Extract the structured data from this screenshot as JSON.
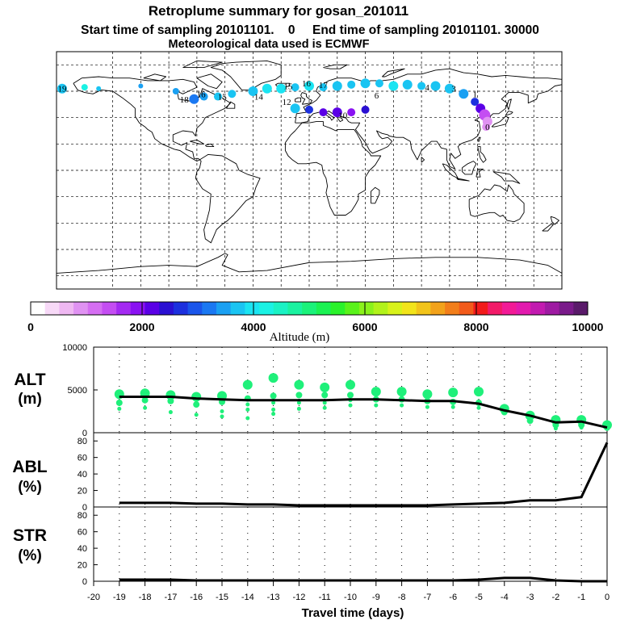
{
  "header": {
    "title": "Retroplume summary for gosan_201011",
    "sampling": "Start time of sampling 20101101.    0     End time of sampling 20101101. 30000",
    "met": "Meteorological data used is ECMWF"
  },
  "colorbar": {
    "label": "Altitude (m)",
    "ticks": [
      "0",
      "2000",
      "4000",
      "6000",
      "8000",
      "10000"
    ],
    "colors": [
      "#ffffff",
      "#f7d9f7",
      "#efb8f2",
      "#e092f2",
      "#d56ef2",
      "#c44df2",
      "#a42af2",
      "#8a12f2",
      "#5a00e6",
      "#2a10d2",
      "#1c30de",
      "#1a55ea",
      "#1a78f2",
      "#1aa0f2",
      "#1ac4f2",
      "#1ae4f2",
      "#1af2e4",
      "#1af2c4",
      "#1af2a0",
      "#1af27a",
      "#1af252",
      "#2af22a",
      "#5af21a",
      "#8af21a",
      "#b2f21a",
      "#d8f21a",
      "#f2e41a",
      "#f2c41a",
      "#f2a21a",
      "#f27e1a",
      "#f25a1a",
      "#f21a1a",
      "#f21a68",
      "#f21a96",
      "#e21aae",
      "#c21ab0",
      "#9e1aa2",
      "#7a1a8a",
      "#5a1a6a"
    ]
  },
  "map_labels": [
    {
      "t": "19",
      "lon": -176,
      "lat": 62
    },
    {
      "t": "16",
      "lon": -77,
      "lat": 58
    },
    {
      "t": "18",
      "lon": -89,
      "lat": 54
    },
    {
      "t": "15",
      "lon": -62,
      "lat": 56
    },
    {
      "t": "14",
      "lon": -36,
      "lat": 56
    },
    {
      "t": "15",
      "lon": -15,
      "lat": 64
    },
    {
      "t": "16",
      "lon": -2,
      "lat": 66
    },
    {
      "t": "17",
      "lon": 10,
      "lat": 65
    },
    {
      "t": "12",
      "lon": -16,
      "lat": 52
    },
    {
      "t": "10",
      "lon": 24,
      "lat": 42
    },
    {
      "t": "6",
      "lon": 48,
      "lat": 57
    },
    {
      "t": "4",
      "lon": 84,
      "lat": 63
    },
    {
      "t": "3",
      "lon": 103,
      "lat": 62
    },
    {
      "t": "1",
      "lon": 118,
      "lat": 58
    },
    {
      "t": "0",
      "lon": 127,
      "lat": 33
    }
  ],
  "chart_data": [
    {
      "type": "scatter",
      "panel": "ALT",
      "ylabel": "ALT\n(m)",
      "ylabel_lines": [
        "ALT",
        "(m)"
      ],
      "ylim": [
        0,
        10000
      ],
      "yticks": [
        "10000",
        "5000",
        "0"
      ],
      "yticks_values": [
        10000,
        5000,
        0
      ],
      "xlim": [
        -20,
        0
      ],
      "clusters": [
        {
          "x": -19,
          "y": [
            4500,
            3500,
            2800
          ]
        },
        {
          "x": -18,
          "y": [
            4600,
            3800,
            2900
          ]
        },
        {
          "x": -17,
          "y": [
            4400,
            3700,
            2400
          ]
        },
        {
          "x": -16,
          "y": [
            4200,
            3300,
            2100
          ]
        },
        {
          "x": -15,
          "y": [
            4300,
            3600,
            2500,
            1900
          ]
        },
        {
          "x": -14,
          "y": [
            5600,
            4000,
            3300,
            2700,
            1700
          ]
        },
        {
          "x": -13,
          "y": [
            6400,
            4300,
            3500,
            2700,
            2200
          ]
        },
        {
          "x": -12,
          "y": [
            5600,
            4400,
            3500,
            2800
          ]
        },
        {
          "x": -11,
          "y": [
            5300,
            4400,
            3500,
            2900
          ]
        },
        {
          "x": -10,
          "y": [
            5600,
            4400,
            3800,
            3200
          ]
        },
        {
          "x": -9,
          "y": [
            4800,
            3900,
            3200
          ]
        },
        {
          "x": -8,
          "y": [
            4800,
            3900,
            3200
          ]
        },
        {
          "x": -7,
          "y": [
            4500,
            3700,
            3000
          ]
        },
        {
          "x": -6,
          "y": [
            4700,
            3600,
            3000
          ]
        },
        {
          "x": -5,
          "y": [
            4800,
            3500,
            2900
          ]
        },
        {
          "x": -4,
          "y": [
            2800,
            2400
          ]
        },
        {
          "x": -3,
          "y": [
            2000,
            1400
          ]
        },
        {
          "x": -2,
          "y": [
            1500,
            900,
            500
          ]
        },
        {
          "x": -1,
          "y": [
            1500,
            900,
            600
          ]
        },
        {
          "x": 0,
          "y": [
            900,
            600
          ]
        }
      ],
      "mean_line": {
        "x": [
          -19,
          -18,
          -17,
          -16,
          -15,
          -14,
          -13,
          -12,
          -11,
          -10,
          -9,
          -8,
          -7,
          -6,
          -5,
          -4,
          -3,
          -2,
          -1,
          0
        ],
        "y": [
          4200,
          4200,
          4200,
          4000,
          3900,
          3800,
          3800,
          3800,
          3800,
          3900,
          3900,
          3800,
          3700,
          3700,
          3400,
          2600,
          2000,
          1200,
          1300,
          600
        ]
      }
    },
    {
      "type": "line",
      "panel": "ABL",
      "ylabel": "ABL\n(%)",
      "ylabel_lines": [
        "ABL",
        "(%)"
      ],
      "ylim": [
        0,
        90
      ],
      "yticks": [
        "80",
        "60",
        "40",
        "20",
        "0"
      ],
      "yticks_values": [
        80,
        60,
        40,
        20,
        0
      ],
      "x": [
        -19,
        -18,
        -17,
        -16,
        -15,
        -14,
        -13,
        -12,
        -11,
        -10,
        -9,
        -8,
        -7,
        -6,
        -5,
        -4,
        -3,
        -2,
        -1,
        0
      ],
      "y": [
        5,
        5,
        5,
        4,
        4,
        3,
        3,
        2,
        2,
        2,
        2,
        2,
        2,
        3,
        4,
        5,
        8,
        8,
        12,
        78
      ]
    },
    {
      "type": "line",
      "panel": "STR",
      "ylabel": "STR\n(%)",
      "ylabel_lines": [
        "STR",
        "(%)"
      ],
      "ylim": [
        0,
        90
      ],
      "yticks": [
        "80",
        "60",
        "40",
        "20",
        "0"
      ],
      "yticks_values": [
        80,
        60,
        40,
        20,
        0
      ],
      "x": [
        -19,
        -18,
        -17,
        -16,
        -15,
        -14,
        -13,
        -12,
        -11,
        -10,
        -9,
        -8,
        -7,
        -6,
        -5,
        -4,
        -3,
        -2,
        -1,
        0
      ],
      "y": [
        2,
        2,
        2,
        1,
        1,
        1,
        1,
        1,
        1,
        1,
        1,
        1,
        1,
        1,
        2,
        4,
        4,
        1,
        0,
        0
      ]
    }
  ],
  "xaxis": {
    "label": "Travel time (days)",
    "ticks": [
      "-20",
      "-19",
      "-18",
      "-17",
      "-16",
      "-15",
      "-14",
      "-13",
      "-12",
      "-11",
      "-10",
      "-9",
      "-8",
      "-7",
      "-6",
      "-5",
      "-4",
      "-3",
      "-2",
      "-1",
      "0"
    ],
    "tick_values": [
      -20,
      -19,
      -18,
      -17,
      -16,
      -15,
      -14,
      -13,
      -12,
      -11,
      -10,
      -9,
      -8,
      -7,
      -6,
      -5,
      -4,
      -3,
      -2,
      -1,
      0
    ]
  }
}
